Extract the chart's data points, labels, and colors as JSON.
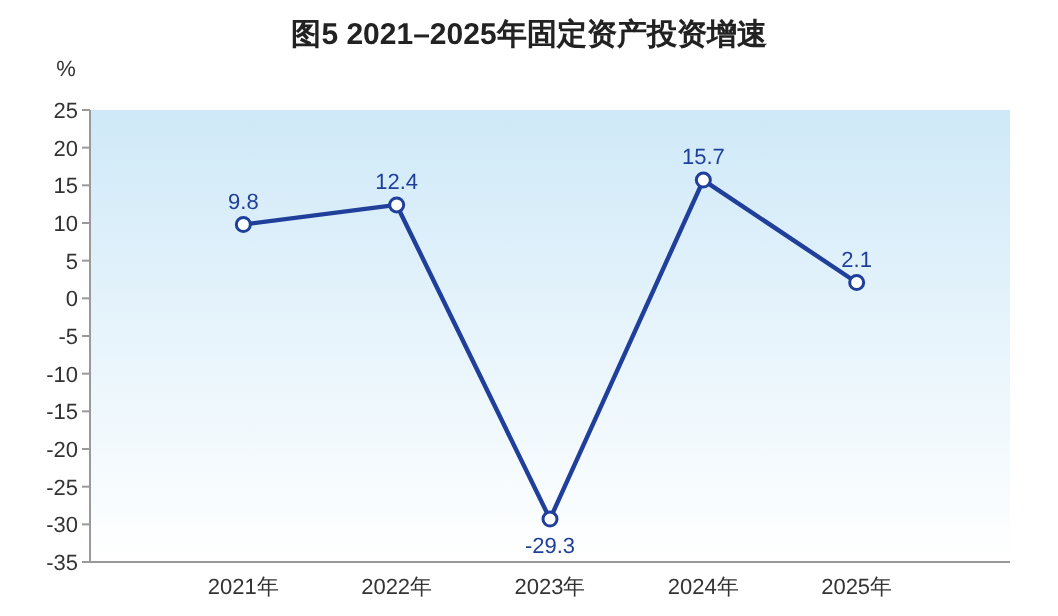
{
  "chart_data": {
    "type": "line",
    "title": "图5 2021–2025年固定资产投资增速",
    "ylabel": "%",
    "categories": [
      "2021年",
      "2022年",
      "2023年",
      "2024年",
      "2025年"
    ],
    "series": [
      {
        "color": "#1f3f9a",
        "values": [
          9.8,
          12.4,
          -29.3,
          15.7,
          2.1
        ]
      }
    ],
    "ylim": [
      -35,
      25
    ],
    "yticks": [
      -35,
      -30,
      -25,
      -20,
      -15,
      -10,
      -5,
      0,
      5,
      10,
      15,
      20,
      25
    ],
    "data_labels": true,
    "marker": "circle",
    "line_style": "solid",
    "grid": false
  }
}
